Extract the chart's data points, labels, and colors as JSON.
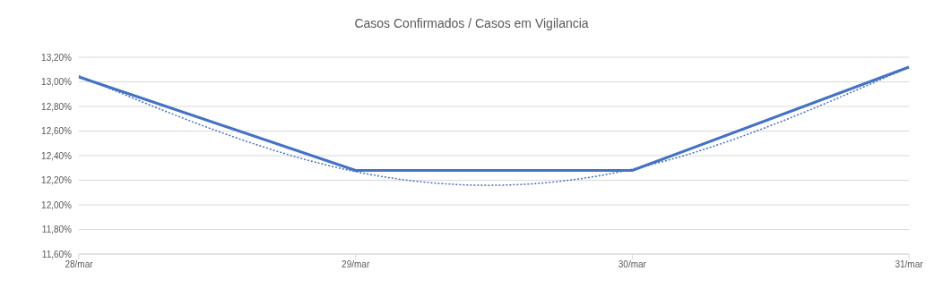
{
  "chart_data": {
    "type": "line",
    "title": "Casos Confirmados / Casos em Vigilancia",
    "categories": [
      "28/mar",
      "29/mar",
      "30/mar",
      "31/mar"
    ],
    "series": [
      {
        "color": "#4472c4",
        "values": [
          13.04,
          12.28,
          12.28,
          13.12
        ],
        "line_style": "solid"
      },
      {
        "type": "line",
        "color": "#4472c4",
        "values": [
          13.05,
          12.27,
          12.29,
          13.12
        ],
        "line_style": "dotted"
      }
    ],
    "ylim": [
      11.6,
      13.2
    ],
    "yticks": [
      {
        "value": 11.6,
        "label": "11,60%"
      },
      {
        "value": 11.8,
        "label": "11,80%"
      },
      {
        "value": 12.0,
        "label": "12,00%"
      },
      {
        "value": 12.2,
        "label": "12,20%"
      },
      {
        "value": 12.4,
        "label": "12,40%"
      },
      {
        "value": 12.6,
        "label": "12,60%"
      },
      {
        "value": 12.8,
        "label": "12,80%"
      },
      {
        "value": 13.0,
        "label": "13,00%"
      },
      {
        "value": 13.2,
        "label": "13,20%"
      }
    ],
    "grid": "y",
    "legend": false,
    "marker": "none"
  }
}
